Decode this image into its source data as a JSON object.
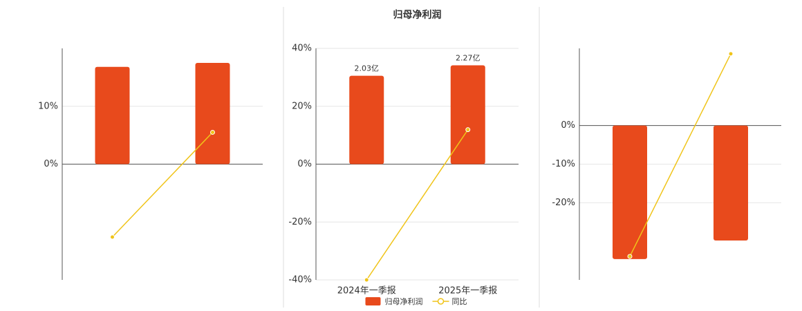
{
  "chart_data": [
    {
      "type": "bar",
      "categories": [
        null,
        null
      ],
      "series": [
        {
          "type": "bar",
          "color": "#e84a1c",
          "values": [
            16.8,
            17.5
          ]
        },
        {
          "type": "line",
          "color": "#f0c419",
          "values": [
            -12.6,
            5.5
          ]
        }
      ],
      "ylim": [
        -20,
        20
      ],
      "yticks": [
        {
          "value": 10,
          "label": "10%"
        },
        {
          "value": 0,
          "label": "0%"
        }
      ],
      "grid": true
    },
    {
      "type": "bar",
      "title": "归母净利润",
      "categories": [
        "2024年一季报",
        "2025年一季报"
      ],
      "series": [
        {
          "name": "归母净利润",
          "type": "bar",
          "axis": "y2",
          "color": "#e84a1c",
          "values": [
            2.03,
            2.27
          ],
          "value_labels": [
            "2.03亿",
            "2.27亿"
          ]
        },
        {
          "name": "同比",
          "type": "line",
          "color": "#f0c419",
          "values": [
            -40,
            11.9
          ]
        }
      ],
      "ylim": [
        -40,
        40
      ],
      "yticks": [
        {
          "value": 40,
          "label": "40%"
        },
        {
          "value": 20,
          "label": "20%"
        },
        {
          "value": 0,
          "label": "0%"
        },
        {
          "value": -20,
          "label": "-20%"
        },
        {
          "value": -40,
          "label": "-40%"
        }
      ],
      "y2lim": [
        -2.66,
        2.66
      ],
      "grid": true
    },
    {
      "type": "bar",
      "categories": [
        null,
        null
      ],
      "series": [
        {
          "type": "bar",
          "color": "#e84a1c",
          "values": [
            -34.6,
            -29.8
          ]
        },
        {
          "type": "line",
          "color": "#f0c419",
          "values": [
            -33.9,
            18.6
          ]
        }
      ],
      "ylim": [
        -40,
        20
      ],
      "yticks": [
        {
          "value": 0,
          "label": "0%"
        },
        {
          "value": -10,
          "label": "-10%"
        },
        {
          "value": -20,
          "label": "-20%"
        }
      ],
      "grid": true
    }
  ]
}
